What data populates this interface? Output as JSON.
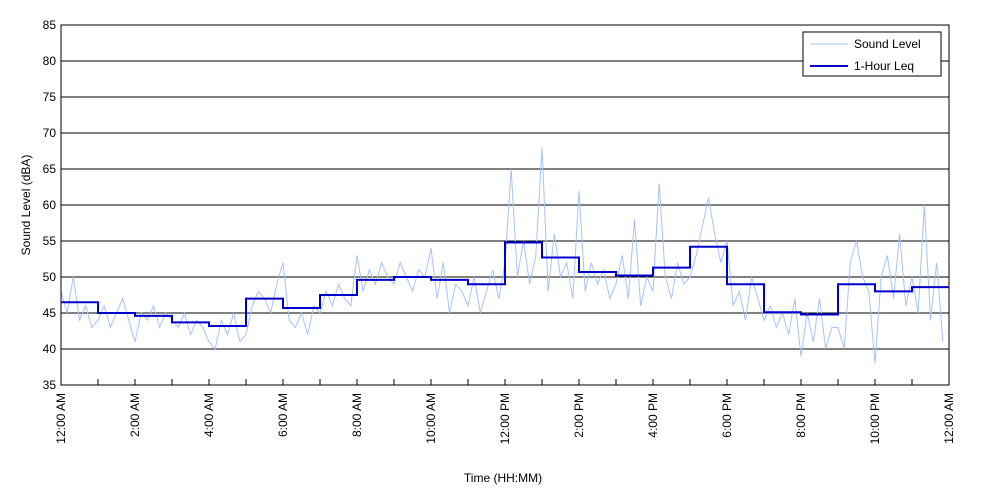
{
  "chart_data": {
    "type": "line",
    "xlabel": "Time (HH:MM)",
    "ylabel": "Sound Level (dBA)",
    "xlim": [
      0,
      1440
    ],
    "ylim": [
      35,
      85
    ],
    "xticks": [
      {
        "value": 0,
        "label": "12:00 AM"
      },
      {
        "value": 120,
        "label": "2:00 AM"
      },
      {
        "value": 240,
        "label": "4:00 AM"
      },
      {
        "value": 360,
        "label": "6:00 AM"
      },
      {
        "value": 480,
        "label": "8:00 AM"
      },
      {
        "value": 600,
        "label": "10:00 AM"
      },
      {
        "value": 720,
        "label": "12:00 PM"
      },
      {
        "value": 840,
        "label": "2:00 PM"
      },
      {
        "value": 960,
        "label": "4:00 PM"
      },
      {
        "value": 1080,
        "label": "6:00 PM"
      },
      {
        "value": 1200,
        "label": "8:00 PM"
      },
      {
        "value": 1320,
        "label": "10:00 PM"
      },
      {
        "value": 1440,
        "label": "12:00 AM"
      }
    ],
    "xminorticks": [
      60,
      180,
      300,
      420,
      540,
      660,
      780,
      900,
      1020,
      1140,
      1260,
      1380
    ],
    "yticks": [
      35,
      40,
      45,
      50,
      55,
      60,
      65,
      70,
      75,
      80,
      85
    ],
    "grid": true,
    "legend": "upper right",
    "series": [
      {
        "name": "Sound Level",
        "color": "#a8c2f4",
        "width": 1,
        "x": [
          0,
          10,
          20,
          30,
          40,
          50,
          60,
          70,
          80,
          90,
          100,
          110,
          120,
          130,
          140,
          150,
          160,
          170,
          180,
          190,
          200,
          210,
          220,
          230,
          240,
          250,
          260,
          270,
          280,
          290,
          300,
          310,
          320,
          330,
          340,
          350,
          360,
          370,
          380,
          390,
          400,
          410,
          420,
          430,
          440,
          450,
          460,
          470,
          480,
          490,
          500,
          510,
          520,
          530,
          540,
          550,
          560,
          570,
          580,
          590,
          600,
          610,
          620,
          630,
          640,
          650,
          660,
          670,
          680,
          690,
          700,
          710,
          720,
          730,
          740,
          750,
          760,
          770,
          780,
          790,
          800,
          810,
          820,
          830,
          840,
          850,
          860,
          870,
          880,
          890,
          900,
          910,
          920,
          930,
          940,
          950,
          960,
          970,
          980,
          990,
          1000,
          1010,
          1020,
          1030,
          1040,
          1050,
          1060,
          1070,
          1080,
          1090,
          1100,
          1110,
          1120,
          1130,
          1140,
          1150,
          1160,
          1170,
          1180,
          1190,
          1200,
          1210,
          1220,
          1230,
          1240,
          1250,
          1260,
          1270,
          1280,
          1290,
          1300,
          1310,
          1320,
          1330,
          1340,
          1350,
          1360,
          1370,
          1380,
          1390,
          1400,
          1410,
          1420,
          1430
        ],
        "values": [
          48,
          45,
          50,
          44,
          46,
          43,
          44,
          46,
          43,
          45,
          47,
          44,
          41,
          45,
          44,
          46,
          43,
          45,
          44,
          43,
          45,
          42,
          44,
          43,
          41,
          40,
          44,
          42,
          45,
          41,
          42,
          46,
          48,
          47,
          45,
          49,
          52,
          44,
          43,
          45,
          42,
          46,
          45,
          48,
          46,
          49,
          47,
          46,
          53,
          48,
          51,
          49,
          52,
          50,
          49,
          52,
          50,
          48,
          51,
          50,
          54,
          47,
          52,
          45,
          49,
          48,
          46,
          50,
          45,
          48,
          51,
          47,
          52,
          65,
          50,
          55,
          49,
          53,
          68,
          48,
          56,
          50,
          52,
          47,
          62,
          48,
          52,
          49,
          51,
          47,
          49,
          53,
          47,
          58,
          46,
          50,
          48,
          63,
          50,
          47,
          52,
          49,
          50,
          53,
          57,
          61,
          56,
          52,
          55,
          46,
          48,
          44,
          50,
          47,
          44,
          46,
          43,
          45,
          42,
          47,
          39,
          45,
          41,
          47,
          40,
          43,
          43,
          40,
          52,
          55,
          50,
          48,
          38,
          50,
          53,
          47,
          56,
          46,
          50,
          45,
          60,
          44,
          52,
          41
        ]
      },
      {
        "name": "1-Hour Leq",
        "color": "#0000cc",
        "width": 2,
        "step": "post",
        "x": [
          0,
          60,
          120,
          180,
          240,
          300,
          360,
          420,
          480,
          540,
          600,
          660,
          720,
          780,
          840,
          900,
          960,
          1020,
          1080,
          1140,
          1200,
          1260,
          1320,
          1380
        ],
        "values": [
          46.5,
          45.0,
          44.6,
          43.7,
          43.2,
          47.0,
          45.7,
          47.5,
          49.6,
          50.0,
          49.6,
          49.0,
          54.8,
          52.7,
          50.7,
          50.2,
          51.3,
          54.2,
          49.0,
          45.1,
          44.8,
          49.0,
          48.0,
          48.6
        ]
      }
    ]
  }
}
